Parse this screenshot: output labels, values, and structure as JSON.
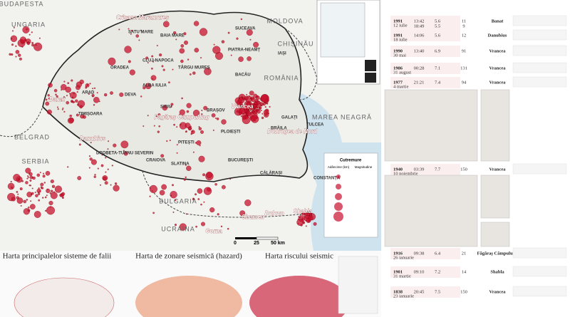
{
  "map": {
    "countries": [
      "BUDAPESTA",
      "UNGARIA",
      "MOLDOVA",
      "CHIȘINĂU",
      "ROMÂNIA",
      "UCRAINA",
      "MAREA NEAGRĂ",
      "SERBIA",
      "BELGRAD",
      "BULGARIA"
    ],
    "cities": [
      "SATU MARE",
      "BAIA MARE",
      "SUCEAVA",
      "IAȘI",
      "ORADEA",
      "CLUJ-NAPOCA",
      "TÂRGU MUREȘ",
      "PIATRA-NEAMȚ",
      "BACĂU",
      "ARAD",
      "ALBA IULIA",
      "DEVA",
      "TIMIȘOARA",
      "SIBIU",
      "BRAȘOV",
      "GALAȚI",
      "BRĂILA",
      "TULCEA",
      "DROBETA-TURNU SEVERIN",
      "PITEȘTI",
      "PLOIEȘTI",
      "CRAIOVA",
      "SLATINA",
      "BUCUREȘTI",
      "CĂLĂRAȘI",
      "CONSTANȚA"
    ],
    "regions": [
      "Crișana Maramureș",
      "Banat",
      "Danubius",
      "Făgăraș Câmpulung",
      "Vrancea",
      "Dobrogea de Nord",
      "Dulovo",
      "Shumen",
      "Gorna",
      "Shabla"
    ],
    "legend": {
      "title": "Cutremure",
      "depth": "Adâncime (km)",
      "magnitude": "Magnitudine"
    },
    "scale": [
      "0",
      "25",
      "50 km"
    ]
  },
  "panels": [
    "Harta principalelor sisteme de falii",
    "Harta de zonare seismică (hazard)",
    "Harta riscului seismic"
  ],
  "events": [
    {
      "year": "1991",
      "date": "12 iulie",
      "time": [
        "13:42",
        "18:49"
      ],
      "magnitude": [
        5.6,
        5.5
      ],
      "depth": [
        11,
        9
      ],
      "region": "Banat"
    },
    {
      "year": "1991",
      "date": "18 iulie",
      "time": [
        "14:06"
      ],
      "magnitude": [
        5.6
      ],
      "depth": [
        12
      ],
      "region": "Danubius"
    },
    {
      "year": "1990",
      "date": "30 mai",
      "time": [
        "13:40"
      ],
      "magnitude": [
        6.9
      ],
      "depth": [
        91
      ],
      "region": "Vrancea"
    },
    {
      "year": "1986",
      "date": "31 august",
      "time": [
        "00:28"
      ],
      "magnitude": [
        7.1
      ],
      "depth": [
        131
      ],
      "region": "Vrancea"
    },
    {
      "year": "1977",
      "date": "4 martie",
      "time": [
        "21:21"
      ],
      "magnitude": [
        7.4
      ],
      "depth": [
        94
      ],
      "region": "Vrancea"
    },
    {
      "year": "1940",
      "date": "10 noiembrie",
      "time": [
        "03:39"
      ],
      "magnitude": [
        7.7
      ],
      "depth": [
        150
      ],
      "region": "Vrancea"
    },
    {
      "year": "1916",
      "date": "26 ianuarie",
      "time": [
        "09:38"
      ],
      "magnitude": [
        6.4
      ],
      "depth": [
        21
      ],
      "region": "Făgăraș Câmpulung"
    },
    {
      "year": "1901",
      "date": "31 martie",
      "time": [
        "09:10"
      ],
      "magnitude": [
        7.2
      ],
      "depth": [
        14
      ],
      "region": "Shabla"
    },
    {
      "year": "1838",
      "date": "23 ianuarie",
      "time": [
        "20:45"
      ],
      "magnitude": [
        7.5
      ],
      "depth": [
        150
      ],
      "region": "Vrancea"
    }
  ]
}
